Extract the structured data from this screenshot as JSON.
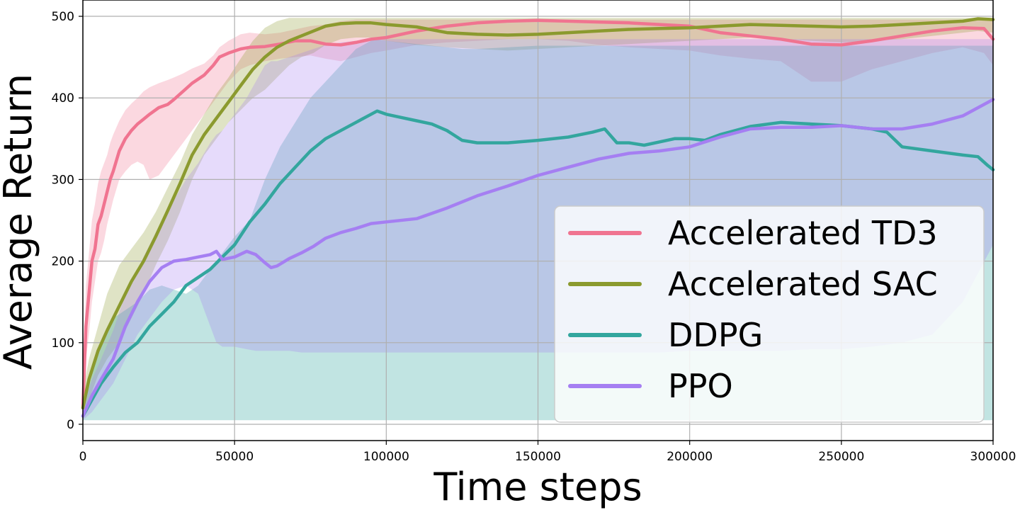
{
  "chart_data": {
    "type": "line",
    "title": "",
    "xlabel": "Time steps",
    "ylabel": "Average Return",
    "xlim": [
      0,
      300000
    ],
    "ylim": [
      -20,
      520
    ],
    "xticks": [
      0,
      50000,
      100000,
      150000,
      200000,
      250000,
      300000
    ],
    "xtick_labels": [
      "0",
      "50000",
      "100000",
      "150000",
      "200000",
      "250000",
      "300000"
    ],
    "yticks": [
      0,
      100,
      200,
      300,
      400,
      500
    ],
    "ytick_labels": [
      "0",
      "100",
      "200",
      "300",
      "400",
      "500"
    ],
    "grid": true,
    "legend_position": "lower-right",
    "series": [
      {
        "name": "Accelerated TD3",
        "color": "#f07490",
        "x": [
          0,
          1000,
          2000,
          3000,
          4000,
          5000,
          6000,
          7000,
          8000,
          9000,
          10000,
          12000,
          14000,
          16000,
          18000,
          20000,
          22000,
          25000,
          28000,
          30000,
          33000,
          36000,
          40000,
          43000,
          45000,
          48000,
          52000,
          55000,
          60000,
          65000,
          70000,
          75000,
          80000,
          85000,
          90000,
          95000,
          100000,
          110000,
          120000,
          130000,
          140000,
          150000,
          160000,
          170000,
          180000,
          190000,
          200000,
          210000,
          220000,
          230000,
          240000,
          250000,
          260000,
          270000,
          280000,
          290000,
          297000,
          300000
        ],
        "y": [
          20,
          120,
          160,
          200,
          215,
          245,
          255,
          270,
          285,
          300,
          310,
          335,
          350,
          360,
          368,
          374,
          380,
          388,
          392,
          398,
          408,
          418,
          428,
          440,
          450,
          455,
          460,
          462,
          463,
          466,
          470,
          470,
          466,
          465,
          468,
          472,
          474,
          482,
          488,
          492,
          494,
          495,
          494,
          493,
          492,
          490,
          488,
          480,
          476,
          472,
          466,
          465,
          470,
          476,
          482,
          486,
          485,
          472
        ],
        "band_upper": [
          40,
          170,
          210,
          250,
          270,
          295,
          310,
          320,
          330,
          345,
          355,
          372,
          385,
          393,
          400,
          408,
          413,
          418,
          422,
          425,
          430,
          436,
          442,
          452,
          462,
          470,
          478,
          480,
          478,
          480,
          484,
          488,
          490,
          494,
          496,
          496,
          496,
          496,
          496,
          496,
          496,
          496,
          496,
          496,
          496,
          496,
          496,
          496,
          496,
          496,
          496,
          496,
          496,
          496,
          496,
          496,
          496,
          496
        ],
        "band_lower": [
          10,
          80,
          110,
          150,
          175,
          200,
          210,
          225,
          245,
          260,
          275,
          300,
          310,
          318,
          322,
          318,
          300,
          305,
          320,
          330,
          345,
          360,
          380,
          395,
          405,
          420,
          435,
          440,
          445,
          448,
          450,
          452,
          448,
          445,
          450,
          455,
          458,
          465,
          468,
          470,
          472,
          472,
          470,
          465,
          462,
          460,
          458,
          452,
          448,
          445,
          420,
          420,
          435,
          445,
          455,
          462,
          455,
          440
        ]
      },
      {
        "name": "Accelerated SAC",
        "color": "#8b9a2e",
        "x": [
          0,
          2000,
          5000,
          8000,
          12000,
          16000,
          20000,
          24000,
          28000,
          32000,
          36000,
          40000,
          44000,
          48000,
          52000,
          56000,
          60000,
          64000,
          68000,
          72000,
          76000,
          80000,
          85000,
          90000,
          95000,
          100000,
          110000,
          120000,
          130000,
          140000,
          150000,
          160000,
          170000,
          180000,
          190000,
          200000,
          210000,
          220000,
          230000,
          240000,
          250000,
          260000,
          270000,
          280000,
          290000,
          295000,
          300000
        ],
        "y": [
          20,
          55,
          90,
          115,
          145,
          175,
          200,
          230,
          262,
          295,
          330,
          355,
          375,
          395,
          415,
          435,
          450,
          462,
          470,
          476,
          482,
          488,
          491,
          492,
          492,
          490,
          487,
          480,
          478,
          477,
          478,
          480,
          482,
          484,
          485,
          486,
          488,
          490,
          489,
          488,
          487,
          488,
          490,
          492,
          494,
          497,
          496
        ],
        "band_upper": [
          40,
          80,
          120,
          160,
          195,
          215,
          235,
          260,
          290,
          320,
          355,
          380,
          405,
          425,
          448,
          470,
          486,
          494,
          498,
          498,
          498,
          498,
          498,
          498,
          498,
          498,
          498,
          498,
          498,
          498,
          498,
          498,
          498,
          498,
          498,
          498,
          498,
          498,
          498,
          498,
          498,
          498,
          498,
          498,
          498,
          498,
          498
        ],
        "band_lower": [
          10,
          30,
          60,
          80,
          100,
          130,
          160,
          195,
          225,
          260,
          300,
          330,
          350,
          370,
          385,
          400,
          410,
          425,
          440,
          450,
          455,
          465,
          472,
          474,
          474,
          470,
          465,
          462,
          460,
          458,
          460,
          462,
          464,
          466,
          468,
          470,
          472,
          474,
          472,
          470,
          468,
          470,
          472,
          476,
          480,
          482,
          480
        ]
      },
      {
        "name": "DDPG",
        "color": "#33a69e",
        "x": [
          0,
          3000,
          6000,
          10000,
          14000,
          18000,
          22000,
          26000,
          30000,
          34000,
          38000,
          42000,
          46000,
          50000,
          55000,
          60000,
          65000,
          70000,
          75000,
          80000,
          85000,
          90000,
          95000,
          97000,
          100000,
          105000,
          110000,
          115000,
          120000,
          125000,
          130000,
          140000,
          150000,
          160000,
          168000,
          172000,
          176000,
          180000,
          185000,
          190000,
          195000,
          200000,
          205000,
          210000,
          220000,
          230000,
          240000,
          250000,
          260000,
          265000,
          270000,
          280000,
          290000,
          295000,
          298000,
          300000
        ],
        "y": [
          10,
          30,
          50,
          70,
          88,
          100,
          120,
          135,
          150,
          170,
          180,
          190,
          205,
          220,
          248,
          270,
          295,
          315,
          335,
          350,
          360,
          370,
          380,
          384,
          380,
          376,
          372,
          368,
          360,
          348,
          345,
          345,
          348,
          352,
          358,
          362,
          345,
          345,
          342,
          346,
          350,
          350,
          348,
          355,
          365,
          370,
          368,
          366,
          362,
          358,
          340,
          335,
          330,
          328,
          318,
          312
        ],
        "band_upper": [
          20,
          60,
          100,
          130,
          140,
          150,
          165,
          170,
          165,
          160,
          170,
          190,
          210,
          230,
          250,
          300,
          340,
          370,
          400,
          420,
          440,
          460,
          470,
          472,
          470,
          468,
          466,
          464,
          462,
          460,
          460,
          462,
          464,
          464,
          464,
          464,
          464,
          464,
          464,
          464,
          464,
          464,
          464,
          464,
          464,
          464,
          464,
          464,
          464,
          464,
          464,
          464,
          464,
          464,
          464,
          464
        ],
        "band_lower": [
          5,
          5,
          5,
          5,
          5,
          5,
          5,
          5,
          5,
          5,
          5,
          5,
          5,
          5,
          5,
          5,
          5,
          5,
          5,
          5,
          5,
          5,
          5,
          5,
          5,
          5,
          5,
          5,
          5,
          5,
          5,
          5,
          5,
          5,
          5,
          5,
          5,
          5,
          5,
          5,
          5,
          5,
          5,
          5,
          5,
          5,
          5,
          5,
          5,
          5,
          5,
          5,
          5,
          5,
          5,
          5
        ]
      },
      {
        "name": "PPO",
        "color": "#a57ff2",
        "x": [
          0,
          3000,
          6000,
          10000,
          14000,
          18000,
          22000,
          26000,
          30000,
          34000,
          38000,
          42000,
          44000,
          46000,
          50000,
          54000,
          57000,
          60000,
          62000,
          64000,
          68000,
          72000,
          76000,
          80000,
          85000,
          90000,
          95000,
          100000,
          110000,
          120000,
          130000,
          140000,
          150000,
          160000,
          170000,
          180000,
          190000,
          200000,
          210000,
          220000,
          230000,
          240000,
          250000,
          260000,
          270000,
          280000,
          290000,
          300000
        ],
        "y": [
          10,
          35,
          55,
          80,
          120,
          150,
          175,
          192,
          200,
          202,
          205,
          208,
          212,
          202,
          205,
          212,
          208,
          198,
          192,
          194,
          203,
          210,
          218,
          228,
          235,
          240,
          246,
          248,
          252,
          265,
          280,
          292,
          305,
          315,
          325,
          332,
          335,
          340,
          352,
          362,
          364,
          364,
          366,
          362,
          362,
          368,
          378,
          398
        ],
        "band_upper": [
          20,
          55,
          80,
          115,
          160,
          190,
          220,
          250,
          275,
          300,
          320,
          345,
          355,
          360,
          380,
          400,
          420,
          440,
          445,
          445,
          450,
          455,
          460,
          465,
          468,
          470,
          472,
          472,
          472,
          472,
          472,
          472,
          472,
          472,
          472,
          472,
          472,
          472,
          472,
          472,
          472,
          472,
          472,
          472,
          472,
          472,
          472,
          472
        ],
        "band_lower": [
          5,
          15,
          30,
          50,
          80,
          110,
          130,
          150,
          165,
          170,
          160,
          120,
          100,
          95,
          95,
          92,
          90,
          90,
          90,
          90,
          90,
          88,
          88,
          88,
          88,
          88,
          88,
          88,
          88,
          88,
          88,
          88,
          88,
          88,
          88,
          88,
          88,
          90,
          90,
          90,
          90,
          92,
          92,
          95,
          100,
          110,
          150,
          220
        ]
      }
    ]
  }
}
